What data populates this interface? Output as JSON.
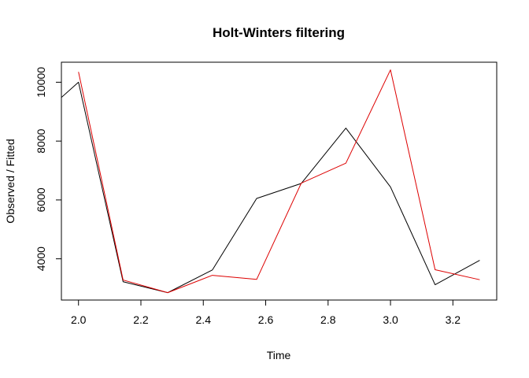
{
  "chart_data": {
    "type": "line",
    "title": "Holt-Winters filtering",
    "xlabel": "Time",
    "ylabel": "Observed / Fitted",
    "xlim": [
      1.9452,
      3.3405
    ],
    "ylim": [
      2599,
      10680
    ],
    "x_ticks": [
      {
        "value": 2.0,
        "label": "2.0"
      },
      {
        "value": 2.2,
        "label": "2.2"
      },
      {
        "value": 2.4,
        "label": "2.4"
      },
      {
        "value": 2.6,
        "label": "2.6"
      },
      {
        "value": 2.8,
        "label": "2.8"
      },
      {
        "value": 3.0,
        "label": "3.0"
      },
      {
        "value": 3.2,
        "label": "3.2"
      }
    ],
    "y_ticks": [
      {
        "value": 4000,
        "label": "4000"
      },
      {
        "value": 6000,
        "label": "6000"
      },
      {
        "value": 8000,
        "label": "8000"
      },
      {
        "value": 10000,
        "label": "10000"
      }
    ],
    "grid": false,
    "series": [
      {
        "color": "#000000",
        "x": [
          1.857,
          2.0,
          2.143,
          2.286,
          2.429,
          2.571,
          2.714,
          2.857,
          3.0,
          3.143,
          3.286
        ],
        "y": [
          8650,
          10000,
          3220,
          2850,
          3620,
          6050,
          6560,
          8440,
          6440,
          3120,
          3950
        ]
      },
      {
        "color": "#dd0000",
        "x": [
          2.0,
          2.143,
          2.286,
          2.429,
          2.571,
          2.714,
          2.857,
          3.0,
          3.143,
          3.286
        ],
        "y": [
          10350,
          3280,
          2850,
          3440,
          3300,
          6570,
          7250,
          10420,
          3630,
          3290
        ]
      }
    ]
  }
}
